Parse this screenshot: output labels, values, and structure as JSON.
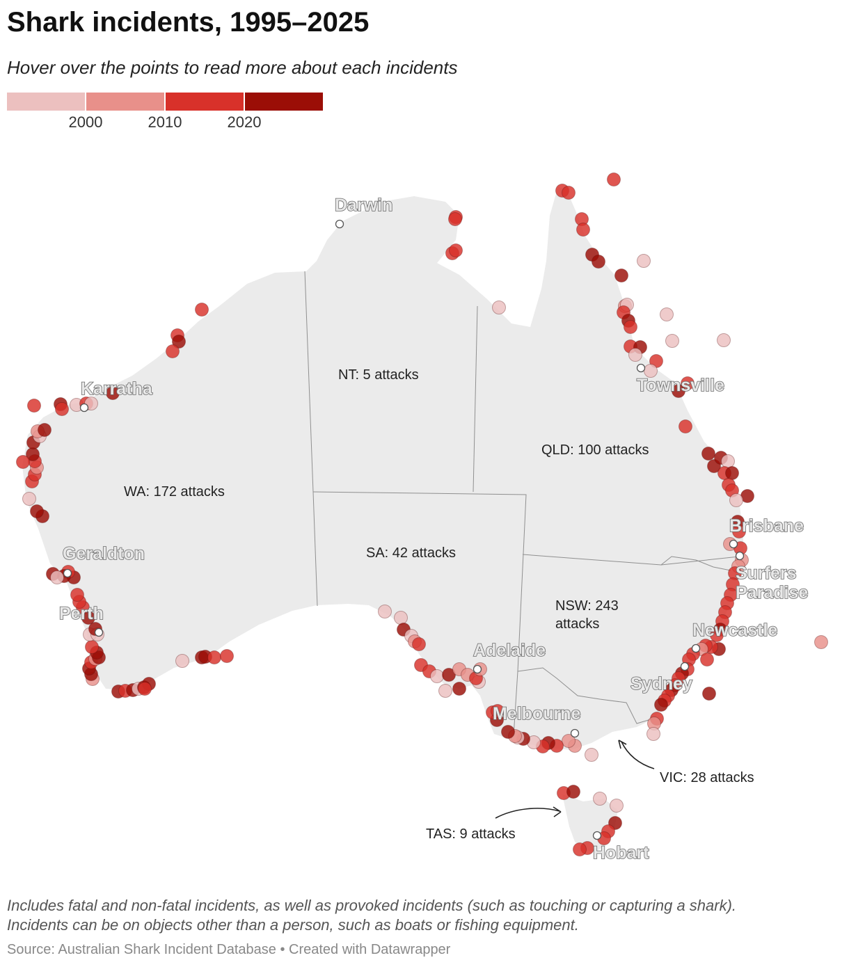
{
  "title": "Shark incidents, 1995–2025",
  "subtitle": "Hover over the points to read more about each incidents",
  "legend": {
    "bins": [
      {
        "color": "#ecc0bf"
      },
      {
        "color": "#e8908a"
      },
      {
        "color": "#d8312a"
      },
      {
        "color": "#9b0e06"
      }
    ],
    "ticks": [
      "2000",
      "2010",
      "2020"
    ]
  },
  "cities": {
    "darwin": "Darwin",
    "karratha": "Karratha",
    "geraldton": "Geraldton",
    "perth": "Perth",
    "adelaide": "Adelaide",
    "melbourne": "Melbourne",
    "hobart": "Hobart",
    "sydney": "Sydney",
    "newcastle": "Newcastle",
    "surfers": [
      "Surfers",
      "Paradise"
    ],
    "brisbane": "Brisbane",
    "townsville": "Townsville"
  },
  "states": {
    "wa": "WA: 172 attacks",
    "nt": "NT: 5 attacks",
    "sa": "SA: 42 attacks",
    "qld": "QLD: 100 attacks",
    "nsw": [
      "NSW: 243",
      "attacks"
    ],
    "vic": "VIC: 28 attacks",
    "tas": "TAS: 9 attacks"
  },
  "footnote": [
    "Includes fatal and non-fatal incidents, as well as provoked incidents (such as touching or capturing a shark).",
    "Incidents can be on objects other than a person, such as boats or fishing equipment."
  ],
  "source": "Source: Australian Shark Incident Database • Created with Datawrapper"
}
